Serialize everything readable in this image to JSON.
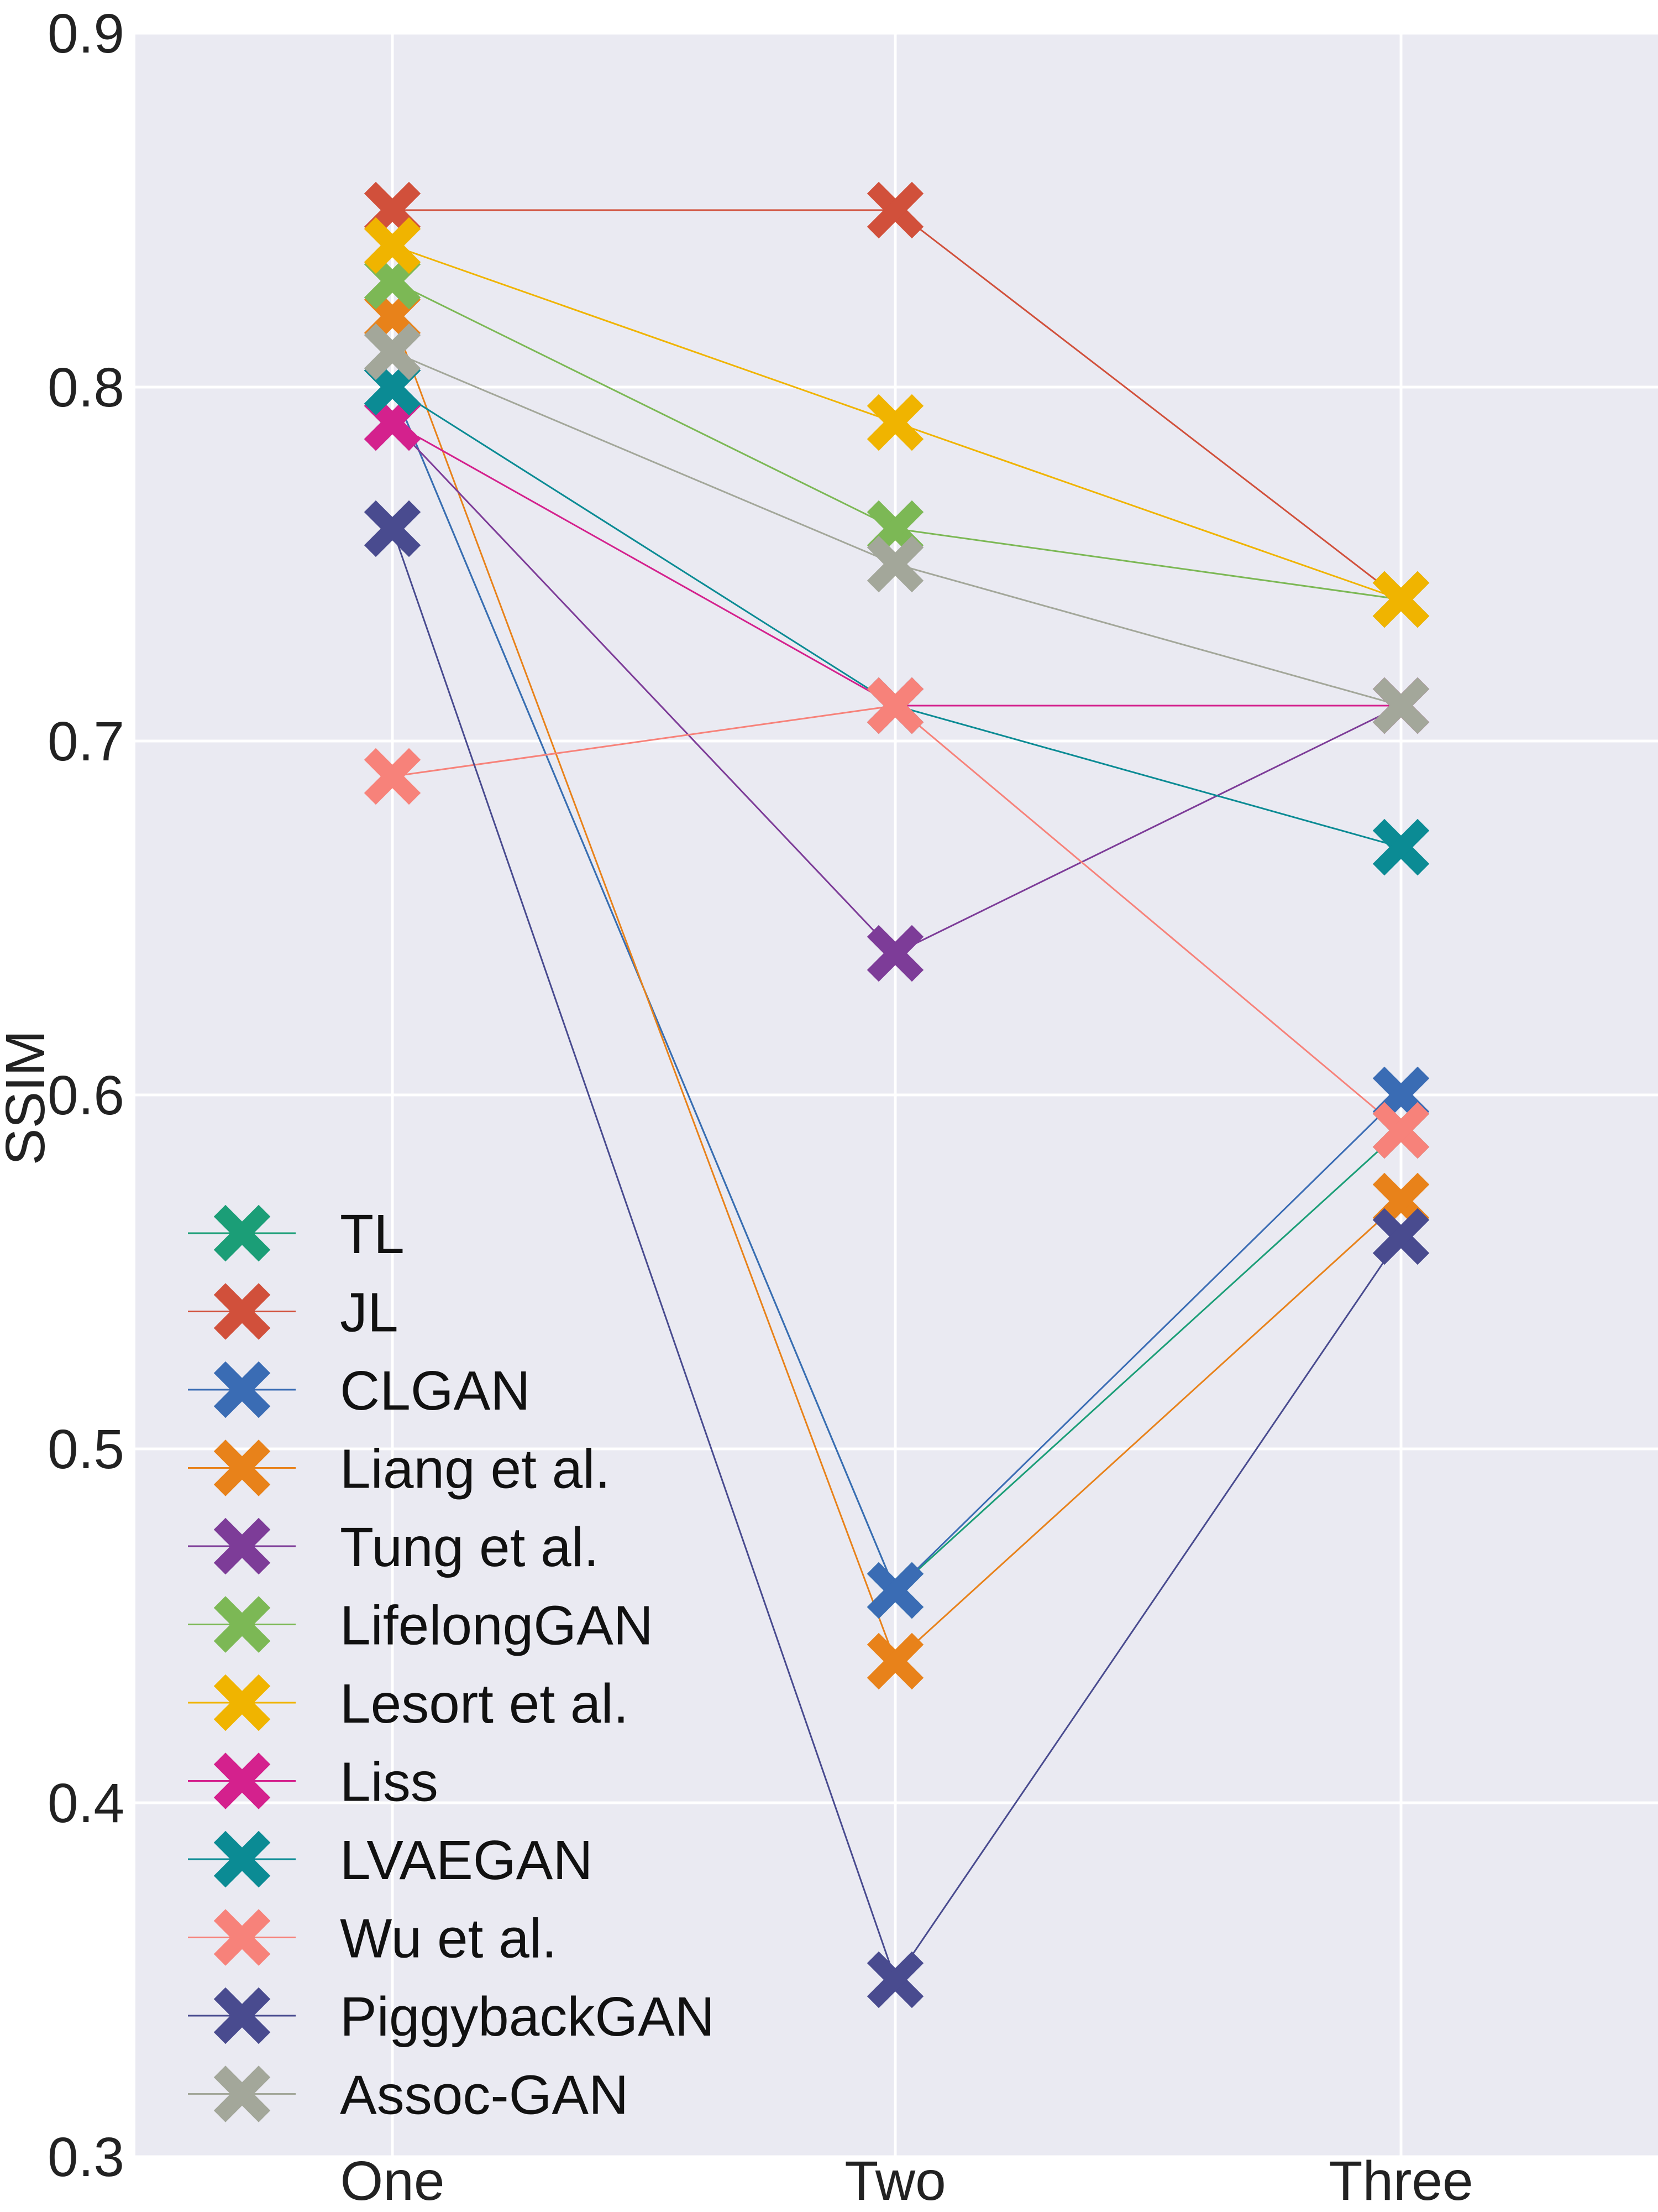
{
  "chart_data": {
    "type": "line",
    "title": "",
    "xlabel": "",
    "ylabel": "SSIM",
    "categories": [
      "One",
      "Two",
      "Three"
    ],
    "ylim": [
      0.3,
      0.9
    ],
    "yticks": [
      0.3,
      0.4,
      0.5,
      0.6,
      0.7,
      0.8,
      0.9
    ],
    "ytick_labels": [
      "0.3",
      "0.4",
      "0.5",
      "0.6",
      "0.7",
      "0.8",
      "0.9"
    ],
    "grid": true,
    "legend_position": "lower-left",
    "marker": "X",
    "series": [
      {
        "name": "TL",
        "color": "#1b9e77",
        "values": [
          0.8,
          0.46,
          0.59
        ]
      },
      {
        "name": "JL",
        "color": "#d1503b",
        "values": [
          0.85,
          0.85,
          0.74
        ]
      },
      {
        "name": "CLGAN",
        "color": "#3a6cb4",
        "values": [
          0.8,
          0.46,
          0.6
        ]
      },
      {
        "name": "Liang et al.",
        "color": "#e8821a",
        "values": [
          0.82,
          0.44,
          0.57
        ]
      },
      {
        "name": "Tung et al.",
        "color": "#7d3c98",
        "values": [
          0.79,
          0.64,
          0.71
        ]
      },
      {
        "name": "LifelongGAN",
        "color": "#7cb855",
        "values": [
          0.83,
          0.76,
          0.74
        ]
      },
      {
        "name": "Lesort et al.",
        "color": "#f0b400",
        "values": [
          0.84,
          0.79,
          0.74
        ]
      },
      {
        "name": "Liss",
        "color": "#d4218d",
        "values": [
          0.79,
          0.71,
          0.71
        ]
      },
      {
        "name": "LVAEGAN",
        "color": "#0b8b94",
        "values": [
          0.8,
          0.71,
          0.67
        ]
      },
      {
        "name": "Wu et al.",
        "color": "#f7827a",
        "values": [
          0.69,
          0.71,
          0.59
        ]
      },
      {
        "name": "PiggybackGAN",
        "color": "#494b8f",
        "values": [
          0.76,
          0.35,
          0.56
        ]
      },
      {
        "name": "Assoc-GAN",
        "color": "#a3a79a",
        "values": [
          0.81,
          0.75,
          0.71
        ]
      }
    ]
  }
}
